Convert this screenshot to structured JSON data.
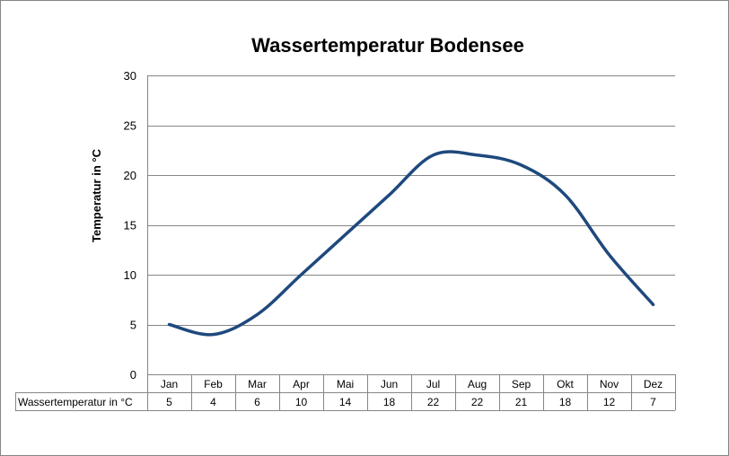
{
  "chart_data": {
    "type": "line",
    "title": "Wassertemperatur Bodensee",
    "ylabel": "Temperatur in °C",
    "xlabel": "",
    "categories": [
      "Jan",
      "Feb",
      "Mar",
      "Apr",
      "Mai",
      "Jun",
      "Jul",
      "Aug",
      "Sep",
      "Okt",
      "Nov",
      "Dez"
    ],
    "series": [
      {
        "name": "Wassertemperatur in °C",
        "values": [
          5,
          4,
          6,
          10,
          14,
          18,
          22,
          22,
          21,
          18,
          12,
          7
        ],
        "color": "#1f497d"
      }
    ],
    "ylim": [
      0,
      30
    ],
    "yticks": [
      "0",
      "5",
      "10",
      "15",
      "20",
      "25",
      "30"
    ],
    "grid": true,
    "legend": "data-table",
    "smooth": true
  }
}
